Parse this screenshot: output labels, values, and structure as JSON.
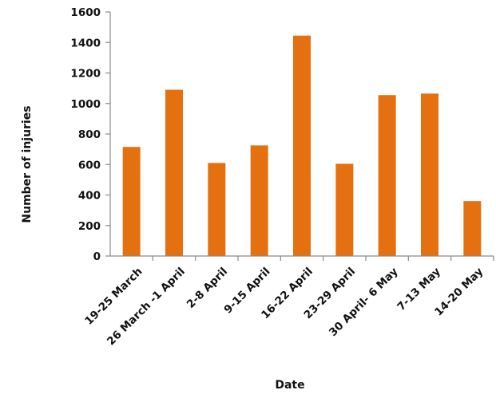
{
  "chart_data": {
    "type": "bar",
    "title": "",
    "xlabel": "Date",
    "ylabel": "Number of injuries",
    "ylim": [
      0,
      1600
    ],
    "yticks": [
      0,
      200,
      400,
      600,
      800,
      1000,
      1200,
      1400,
      1600
    ],
    "categories": [
      "19-25 March",
      "26 March -1 April",
      "2-8 April",
      "9-15 April",
      "16-22 April",
      "23-29 April",
      "30 April- 6 May",
      "7-13 May",
      "14-20 May"
    ],
    "values": [
      715,
      1090,
      610,
      725,
      1445,
      605,
      1055,
      1065,
      360
    ],
    "bar_color": "#e5700f",
    "grid": false,
    "legend": "none"
  }
}
